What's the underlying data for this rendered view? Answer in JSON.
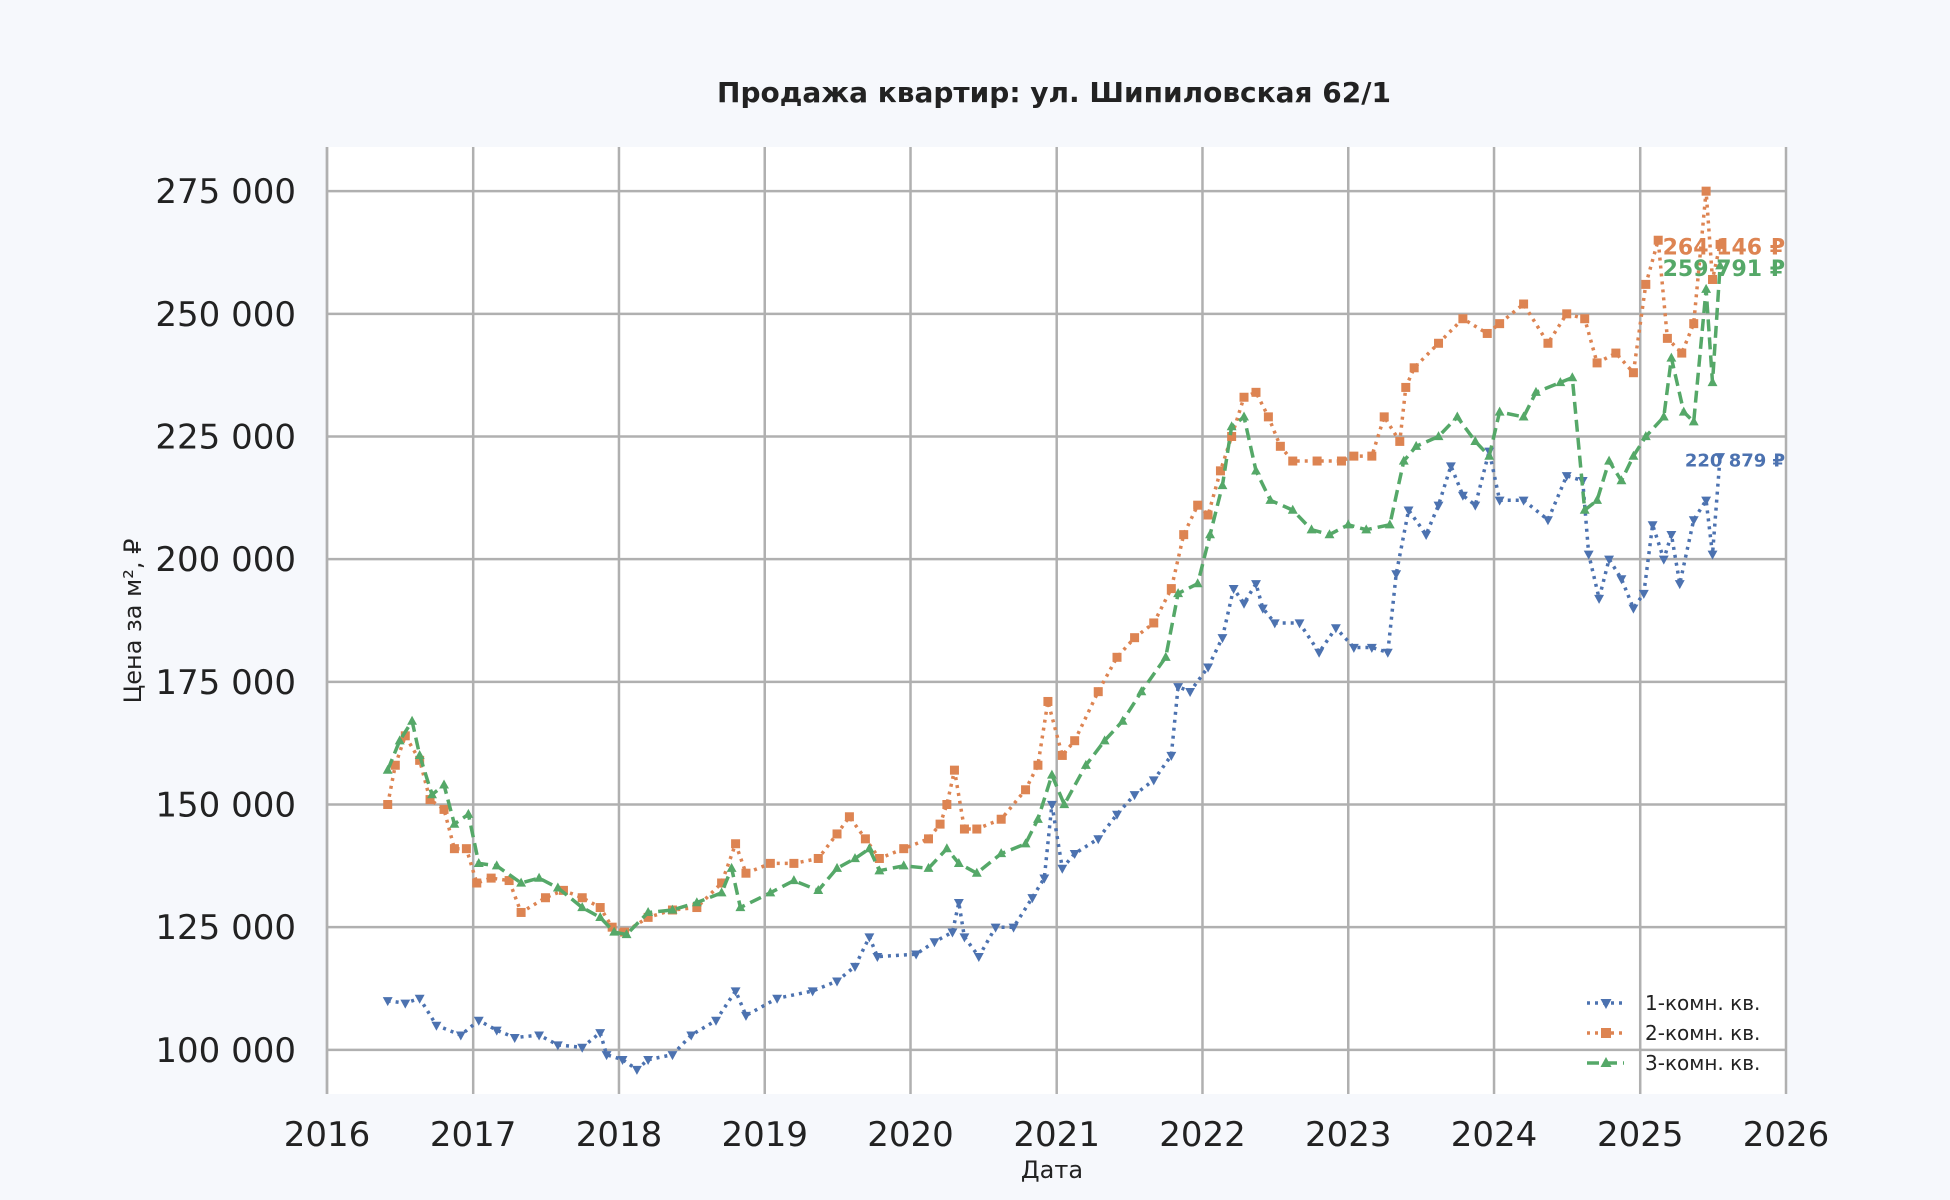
{
  "chart_data": {
    "type": "line",
    "title": "Продажа квартир: ул. Шипиловская 62/1",
    "xlabel": "Дата",
    "ylabel": "Цена за м², ₽",
    "xlim": [
      "2016-01-01",
      "2026-01-01"
    ],
    "ylim": [
      91000,
      284000
    ],
    "x_ticks": [
      "2016",
      "2017",
      "2018",
      "2019",
      "2020",
      "2021",
      "2022",
      "2023",
      "2024",
      "2025",
      "2026"
    ],
    "y_ticks": [
      "100 000",
      "125 000",
      "150 000",
      "175 000",
      "200 000",
      "225 000",
      "250 000",
      "275 000"
    ],
    "y_tick_values": [
      100000,
      125000,
      150000,
      175000,
      200000,
      225000,
      250000,
      275000
    ],
    "grid": true,
    "legend_position": "bottom-right",
    "series": [
      {
        "name": "1-комн. кв.",
        "color": "#4c72b0",
        "marker": "triangle-down",
        "line_style": "dotted",
        "last_label": "220 879 ₽",
        "points": [
          [
            "2016-06-01",
            110000
          ],
          [
            "2016-07-15",
            109500
          ],
          [
            "2016-08-20",
            110500
          ],
          [
            "2016-10-01",
            105000
          ],
          [
            "2016-12-01",
            103000
          ],
          [
            "2017-01-15",
            106000
          ],
          [
            "2017-03-01",
            104000
          ],
          [
            "2017-04-15",
            102500
          ],
          [
            "2017-06-15",
            103000
          ],
          [
            "2017-08-01",
            101000
          ],
          [
            "2017-10-01",
            100500
          ],
          [
            "2017-11-15",
            103500
          ],
          [
            "2017-12-01",
            99000
          ],
          [
            "2018-01-10",
            98000
          ],
          [
            "2018-02-15",
            96000
          ],
          [
            "2018-03-15",
            98000
          ],
          [
            "2018-05-15",
            99000
          ],
          [
            "2018-07-01",
            103000
          ],
          [
            "2018-09-01",
            106000
          ],
          [
            "2018-10-20",
            112000
          ],
          [
            "2018-11-15",
            107000
          ],
          [
            "2019-02-01",
            110500
          ],
          [
            "2019-05-01",
            112000
          ],
          [
            "2019-07-01",
            114000
          ],
          [
            "2019-08-15",
            117000
          ],
          [
            "2019-09-20",
            123000
          ],
          [
            "2019-10-10",
            119000
          ],
          [
            "2020-01-15",
            119500
          ],
          [
            "2020-03-01",
            122000
          ],
          [
            "2020-04-15",
            124000
          ],
          [
            "2020-05-01",
            130000
          ],
          [
            "2020-05-15",
            123000
          ],
          [
            "2020-06-20",
            119000
          ],
          [
            "2020-08-01",
            125000
          ],
          [
            "2020-09-15",
            125000
          ],
          [
            "2020-11-01",
            131000
          ],
          [
            "2020-12-01",
            135000
          ],
          [
            "2020-12-20",
            150000
          ],
          [
            "2021-01-15",
            137000
          ],
          [
            "2021-02-15",
            140000
          ],
          [
            "2021-04-15",
            143000
          ],
          [
            "2021-06-01",
            148000
          ],
          [
            "2021-07-15",
            152000
          ],
          [
            "2021-09-01",
            155000
          ],
          [
            "2021-10-15",
            160000
          ],
          [
            "2021-11-01",
            174000
          ],
          [
            "2021-12-01",
            173000
          ],
          [
            "2022-01-15",
            178000
          ],
          [
            "2022-02-20",
            184000
          ],
          [
            "2022-03-20",
            194000
          ],
          [
            "2022-04-15",
            191000
          ],
          [
            "2022-05-15",
            195000
          ],
          [
            "2022-06-01",
            190000
          ],
          [
            "2022-07-01",
            187000
          ],
          [
            "2022-09-01",
            187000
          ],
          [
            "2022-10-20",
            181000
          ],
          [
            "2022-12-01",
            186000
          ],
          [
            "2023-01-15",
            182000
          ],
          [
            "2023-03-01",
            182000
          ],
          [
            "2023-04-10",
            181000
          ],
          [
            "2023-05-01",
            197000
          ],
          [
            "2023-06-01",
            210000
          ],
          [
            "2023-07-15",
            205000
          ],
          [
            "2023-08-15",
            211000
          ],
          [
            "2023-09-15",
            219000
          ],
          [
            "2023-10-15",
            213000
          ],
          [
            "2023-11-15",
            211000
          ],
          [
            "2023-12-20",
            222000
          ],
          [
            "2024-01-15",
            212000
          ],
          [
            "2024-03-15",
            212000
          ],
          [
            "2024-05-15",
            208000
          ],
          [
            "2024-07-01",
            217000
          ],
          [
            "2024-08-10",
            216000
          ],
          [
            "2024-08-25",
            201000
          ],
          [
            "2024-09-20",
            192000
          ],
          [
            "2024-10-15",
            200000
          ],
          [
            "2024-11-15",
            196000
          ],
          [
            "2024-12-15",
            190000
          ],
          [
            "2025-01-10",
            193000
          ],
          [
            "2025-02-01",
            207000
          ],
          [
            "2025-03-01",
            200000
          ],
          [
            "2025-03-20",
            205000
          ],
          [
            "2025-04-10",
            195000
          ],
          [
            "2025-05-15",
            208000
          ],
          [
            "2025-06-15",
            212000
          ],
          [
            "2025-07-01",
            201000
          ],
          [
            "2025-07-20",
            220879
          ]
        ]
      },
      {
        "name": "2-комн. кв.",
        "color": "#dd8452",
        "marker": "square",
        "line_style": "dotted",
        "last_label": "264 146 ₽",
        "points": [
          [
            "2016-06-01",
            150000
          ],
          [
            "2016-06-20",
            158000
          ],
          [
            "2016-07-15",
            164000
          ],
          [
            "2016-08-20",
            159000
          ],
          [
            "2016-09-15",
            151000
          ],
          [
            "2016-10-20",
            149000
          ],
          [
            "2016-11-15",
            141000
          ],
          [
            "2016-12-15",
            141000
          ],
          [
            "2017-01-10",
            134000
          ],
          [
            "2017-02-15",
            135000
          ],
          [
            "2017-04-01",
            134500
          ],
          [
            "2017-05-01",
            128000
          ],
          [
            "2017-07-01",
            131000
          ],
          [
            "2017-08-15",
            132500
          ],
          [
            "2017-10-01",
            131000
          ],
          [
            "2017-11-15",
            129000
          ],
          [
            "2017-12-15",
            125000
          ],
          [
            "2018-01-15",
            124000
          ],
          [
            "2018-03-15",
            127000
          ],
          [
            "2018-05-15",
            128500
          ],
          [
            "2018-07-15",
            129000
          ],
          [
            "2018-09-15",
            134000
          ],
          [
            "2018-10-20",
            142000
          ],
          [
            "2018-11-15",
            136000
          ],
          [
            "2019-01-15",
            138000
          ],
          [
            "2019-03-15",
            138000
          ],
          [
            "2019-05-15",
            139000
          ],
          [
            "2019-07-01",
            144000
          ],
          [
            "2019-08-01",
            147500
          ],
          [
            "2019-09-10",
            143000
          ],
          [
            "2019-10-15",
            139000
          ],
          [
            "2019-12-15",
            141000
          ],
          [
            "2020-02-15",
            143000
          ],
          [
            "2020-03-15",
            146000
          ],
          [
            "2020-04-01",
            150000
          ],
          [
            "2020-04-20",
            157000
          ],
          [
            "2020-05-15",
            145000
          ],
          [
            "2020-06-15",
            145000
          ],
          [
            "2020-08-15",
            147000
          ],
          [
            "2020-10-15",
            153000
          ],
          [
            "2020-11-15",
            158000
          ],
          [
            "2020-12-10",
            171000
          ],
          [
            "2021-01-15",
            160000
          ],
          [
            "2021-02-15",
            163000
          ],
          [
            "2021-04-15",
            173000
          ],
          [
            "2021-06-01",
            180000
          ],
          [
            "2021-07-15",
            184000
          ],
          [
            "2021-09-01",
            187000
          ],
          [
            "2021-10-15",
            194000
          ],
          [
            "2021-11-15",
            205000
          ],
          [
            "2021-12-20",
            211000
          ],
          [
            "2022-01-15",
            209000
          ],
          [
            "2022-02-15",
            218000
          ],
          [
            "2022-03-15",
            225000
          ],
          [
            "2022-04-15",
            233000
          ],
          [
            "2022-05-15",
            234000
          ],
          [
            "2022-06-15",
            229000
          ],
          [
            "2022-07-15",
            223000
          ],
          [
            "2022-08-15",
            220000
          ],
          [
            "2022-10-15",
            220000
          ],
          [
            "2022-12-15",
            220000
          ],
          [
            "2023-01-15",
            221000
          ],
          [
            "2023-03-01",
            221000
          ],
          [
            "2023-04-01",
            229000
          ],
          [
            "2023-05-10",
            224000
          ],
          [
            "2023-05-25",
            235000
          ],
          [
            "2023-06-15",
            239000
          ],
          [
            "2023-08-15",
            244000
          ],
          [
            "2023-10-15",
            249000
          ],
          [
            "2023-12-15",
            246000
          ],
          [
            "2024-01-15",
            248000
          ],
          [
            "2024-03-15",
            252000
          ],
          [
            "2024-05-15",
            244000
          ],
          [
            "2024-07-01",
            250000
          ],
          [
            "2024-08-15",
            249000
          ],
          [
            "2024-09-15",
            240000
          ],
          [
            "2024-11-01",
            242000
          ],
          [
            "2024-12-15",
            238000
          ],
          [
            "2025-01-15",
            256000
          ],
          [
            "2025-02-15",
            265000
          ],
          [
            "2025-03-10",
            245000
          ],
          [
            "2025-04-15",
            242000
          ],
          [
            "2025-05-15",
            248000
          ],
          [
            "2025-06-15",
            275000
          ],
          [
            "2025-07-01",
            257000
          ],
          [
            "2025-07-20",
            264146
          ]
        ]
      },
      {
        "name": "3-комн. кв.",
        "color": "#55a868",
        "marker": "triangle-up",
        "line_style": "dashed",
        "last_label": "259 791 ₽",
        "points": [
          [
            "2016-06-01",
            157000
          ],
          [
            "2016-07-01",
            163000
          ],
          [
            "2016-08-01",
            167000
          ],
          [
            "2016-08-20",
            160000
          ],
          [
            "2016-09-20",
            152000
          ],
          [
            "2016-10-20",
            154000
          ],
          [
            "2016-11-15",
            146000
          ],
          [
            "2016-12-20",
            148000
          ],
          [
            "2017-01-15",
            138000
          ],
          [
            "2017-03-01",
            137500
          ],
          [
            "2017-05-01",
            134000
          ],
          [
            "2017-06-15",
            135000
          ],
          [
            "2017-08-01",
            133000
          ],
          [
            "2017-10-01",
            129000
          ],
          [
            "2017-11-15",
            127000
          ],
          [
            "2017-12-20",
            124000
          ],
          [
            "2018-01-20",
            123500
          ],
          [
            "2018-03-15",
            128000
          ],
          [
            "2018-05-15",
            128500
          ],
          [
            "2018-07-15",
            130000
          ],
          [
            "2018-09-15",
            132000
          ],
          [
            "2018-10-10",
            137000
          ],
          [
            "2018-11-01",
            129000
          ],
          [
            "2019-01-15",
            132000
          ],
          [
            "2019-03-15",
            134500
          ],
          [
            "2019-05-15",
            132500
          ],
          [
            "2019-07-01",
            137000
          ],
          [
            "2019-08-15",
            139000
          ],
          [
            "2019-09-20",
            141000
          ],
          [
            "2019-10-15",
            136500
          ],
          [
            "2019-12-15",
            137500
          ],
          [
            "2020-02-15",
            137000
          ],
          [
            "2020-04-01",
            141000
          ],
          [
            "2020-05-01",
            138000
          ],
          [
            "2020-06-15",
            136000
          ],
          [
            "2020-08-15",
            140000
          ],
          [
            "2020-10-15",
            142000
          ],
          [
            "2020-11-15",
            147000
          ],
          [
            "2020-12-20",
            156000
          ],
          [
            "2021-01-20",
            150000
          ],
          [
            "2021-03-15",
            158000
          ],
          [
            "2021-05-01",
            163000
          ],
          [
            "2021-06-15",
            167000
          ],
          [
            "2021-08-01",
            173000
          ],
          [
            "2021-10-01",
            180000
          ],
          [
            "2021-11-01",
            193000
          ],
          [
            "2021-12-20",
            195000
          ],
          [
            "2022-01-20",
            205000
          ],
          [
            "2022-02-20",
            215000
          ],
          [
            "2022-03-15",
            227000
          ],
          [
            "2022-04-15",
            229000
          ],
          [
            "2022-05-15",
            218000
          ],
          [
            "2022-06-20",
            212000
          ],
          [
            "2022-08-15",
            210000
          ],
          [
            "2022-10-01",
            206000
          ],
          [
            "2022-11-15",
            205000
          ],
          [
            "2023-01-01",
            207000
          ],
          [
            "2023-02-15",
            206000
          ],
          [
            "2023-04-15",
            207000
          ],
          [
            "2023-05-20",
            220000
          ],
          [
            "2023-06-20",
            223000
          ],
          [
            "2023-08-15",
            225000
          ],
          [
            "2023-10-01",
            229000
          ],
          [
            "2023-11-15",
            224000
          ],
          [
            "2023-12-20",
            221000
          ],
          [
            "2024-01-15",
            230000
          ],
          [
            "2024-03-15",
            229000
          ],
          [
            "2024-04-15",
            234000
          ],
          [
            "2024-06-15",
            236000
          ],
          [
            "2024-07-15",
            237000
          ],
          [
            "2024-08-15",
            210000
          ],
          [
            "2024-09-15",
            212000
          ],
          [
            "2024-10-15",
            220000
          ],
          [
            "2024-11-15",
            216000
          ],
          [
            "2024-12-15",
            221000
          ],
          [
            "2025-01-15",
            225000
          ],
          [
            "2025-03-01",
            229000
          ],
          [
            "2025-03-20",
            241000
          ],
          [
            "2025-04-20",
            230000
          ],
          [
            "2025-05-15",
            228000
          ],
          [
            "2025-06-15",
            255000
          ],
          [
            "2025-07-01",
            236000
          ],
          [
            "2025-07-20",
            259791
          ]
        ]
      }
    ]
  }
}
